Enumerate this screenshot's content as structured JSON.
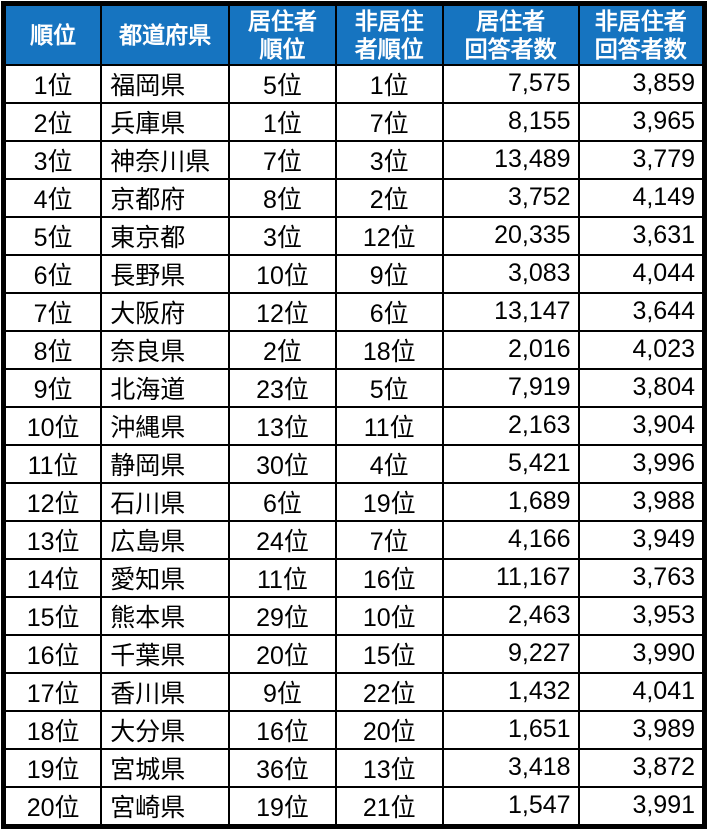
{
  "chart_data": {
    "type": "table",
    "title": "",
    "columns": [
      {
        "name": "rank",
        "lines": [
          "順位"
        ]
      },
      {
        "name": "prefecture",
        "lines": [
          "都道府県"
        ]
      },
      {
        "name": "resident-rank",
        "lines": [
          "居住者",
          "順位"
        ]
      },
      {
        "name": "non-resident-rank",
        "lines": [
          "非居住",
          "者順位"
        ]
      },
      {
        "name": "resident-respondents",
        "lines": [
          "居住者",
          "回答者数"
        ]
      },
      {
        "name": "non-resident-respondents",
        "lines": [
          "非居住者",
          "回答者数"
        ]
      }
    ],
    "rows": [
      [
        "1位",
        "福岡県",
        "5位",
        "1位",
        "7,575",
        "3,859"
      ],
      [
        "2位",
        "兵庫県",
        "1位",
        "7位",
        "8,155",
        "3,965"
      ],
      [
        "3位",
        "神奈川県",
        "7位",
        "3位",
        "13,489",
        "3,779"
      ],
      [
        "4位",
        "京都府",
        "8位",
        "2位",
        "3,752",
        "4,149"
      ],
      [
        "5位",
        "東京都",
        "3位",
        "12位",
        "20,335",
        "3,631"
      ],
      [
        "6位",
        "長野県",
        "10位",
        "9位",
        "3,083",
        "4,044"
      ],
      [
        "7位",
        "大阪府",
        "12位",
        "6位",
        "13,147",
        "3,644"
      ],
      [
        "8位",
        "奈良県",
        "2位",
        "18位",
        "2,016",
        "4,023"
      ],
      [
        "9位",
        "北海道",
        "23位",
        "5位",
        "7,919",
        "3,804"
      ],
      [
        "10位",
        "沖縄県",
        "13位",
        "11位",
        "2,163",
        "3,904"
      ],
      [
        "11位",
        "静岡県",
        "30位",
        "4位",
        "5,421",
        "3,996"
      ],
      [
        "12位",
        "石川県",
        "6位",
        "19位",
        "1,689",
        "3,988"
      ],
      [
        "13位",
        "広島県",
        "24位",
        "7位",
        "4,166",
        "3,949"
      ],
      [
        "14位",
        "愛知県",
        "11位",
        "16位",
        "11,167",
        "3,763"
      ],
      [
        "15位",
        "熊本県",
        "29位",
        "10位",
        "2,463",
        "3,953"
      ],
      [
        "16位",
        "千葉県",
        "20位",
        "15位",
        "9,227",
        "3,990"
      ],
      [
        "17位",
        "香川県",
        "9位",
        "22位",
        "1,432",
        "4,041"
      ],
      [
        "18位",
        "大分県",
        "16位",
        "20位",
        "1,651",
        "3,989"
      ],
      [
        "19位",
        "宮城県",
        "36位",
        "13位",
        "3,418",
        "3,872"
      ],
      [
        "20位",
        "宮崎県",
        "19位",
        "21位",
        "1,547",
        "3,991"
      ]
    ]
  },
  "colors": {
    "header_bg": "#1674c0",
    "header_text": "#ffffff",
    "border": "#000000",
    "body_bg": "#ffffff",
    "body_text": "#000000"
  }
}
